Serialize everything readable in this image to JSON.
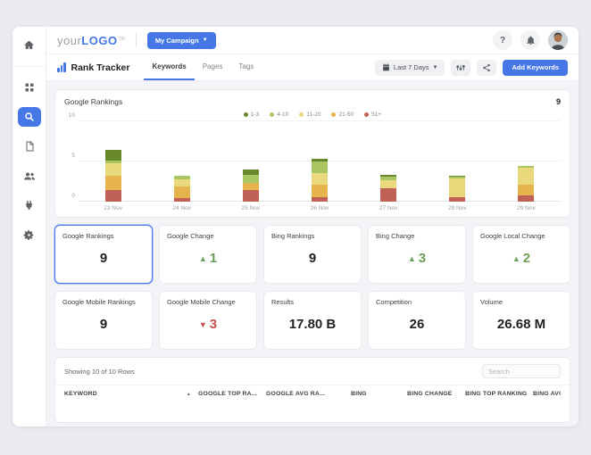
{
  "topbar": {
    "logo_prefix": "your",
    "logo_bold": "LOGO",
    "logo_tm": "TM",
    "campaign_button": "My Campaign",
    "help_label": "?"
  },
  "nav": {
    "title": "Rank Tracker",
    "tabs": [
      "Keywords",
      "Pages",
      "Tags"
    ],
    "active_tab": "Keywords",
    "date_range": "Last 7 Days",
    "add_keywords": "Add Keywords"
  },
  "sidebar": {
    "icons": [
      "home-icon",
      "apps-icon",
      "search-icon",
      "report-icon",
      "clients-icon",
      "integrations-icon",
      "settings-icon"
    ],
    "active": "search-icon"
  },
  "chart_panel": {
    "title": "Google Rankings",
    "total": "9"
  },
  "chart_data": {
    "type": "bar",
    "stacked": true,
    "title": "Google Rankings",
    "categories": [
      "23 Nov",
      "24 Nov",
      "25 Nov",
      "26 Nov",
      "27 Nov",
      "28 Nov",
      "29 Nov"
    ],
    "series": [
      {
        "name": "51+",
        "color": "#c06156",
        "values": [
          1.5,
          0.4,
          1.4,
          0.6,
          1.7,
          0.6,
          0.8
        ]
      },
      {
        "name": "21-50",
        "color": "#e6b44c",
        "values": [
          1.7,
          1.5,
          0.9,
          1.5,
          0.0,
          0.0,
          1.3
        ]
      },
      {
        "name": "11-20",
        "color": "#ead87c",
        "values": [
          1.6,
          0.9,
          0.0,
          1.5,
          1.0,
          2.3,
          2.1
        ]
      },
      {
        "name": "4-10",
        "color": "#a9c662",
        "values": [
          0.3,
          0.4,
          1.0,
          1.4,
          0.4,
          0.2,
          0.3
        ]
      },
      {
        "name": "1-3",
        "color": "#66882a",
        "values": [
          1.4,
          0.0,
          0.7,
          0.3,
          0.2,
          0.1,
          0.0
        ]
      }
    ],
    "legend_order": [
      "1-3",
      "4-10",
      "11-20",
      "21-50",
      "51+"
    ],
    "ylim": [
      0,
      10
    ],
    "yticks": [
      0,
      5,
      10
    ],
    "grid": true,
    "legend_position": "top-center"
  },
  "cards": [
    {
      "label": "Google Rankings",
      "value": "9",
      "trend": null,
      "selected": true
    },
    {
      "label": "Google Change",
      "value": "1",
      "trend": "up",
      "selected": false
    },
    {
      "label": "Bing Rankings",
      "value": "9",
      "trend": null,
      "selected": false
    },
    {
      "label": "Bing Change",
      "value": "3",
      "trend": "up",
      "selected": false
    },
    {
      "label": "Google Local Change",
      "value": "2",
      "trend": "up",
      "selected": false
    },
    {
      "label": "Google Mobile Rankings",
      "value": "9",
      "trend": null,
      "selected": false
    },
    {
      "label": "Google Mobile Change",
      "value": "3",
      "trend": "down",
      "selected": false
    },
    {
      "label": "Results",
      "value": "17.80 B",
      "trend": null,
      "selected": false
    },
    {
      "label": "Competition",
      "value": "26",
      "trend": null,
      "selected": false
    },
    {
      "label": "Volume",
      "value": "26.68 M",
      "trend": null,
      "selected": false
    }
  ],
  "table": {
    "showing": "Showing 10 of 10 Rows",
    "search_placeholder": "Search",
    "columns": [
      "KEYWORD",
      "GOOGLE TOP RA...",
      "GOOGLE AVG RA...",
      "BING",
      "BING CHANGE",
      "BING TOP RANKING",
      "BING AVG"
    ],
    "sort_column": "KEYWORD",
    "sort_direction": "asc"
  },
  "colors": {
    "accent_blue": "#4577e6",
    "trend_up": "#6b9e57",
    "trend_down": "#c0504d"
  }
}
